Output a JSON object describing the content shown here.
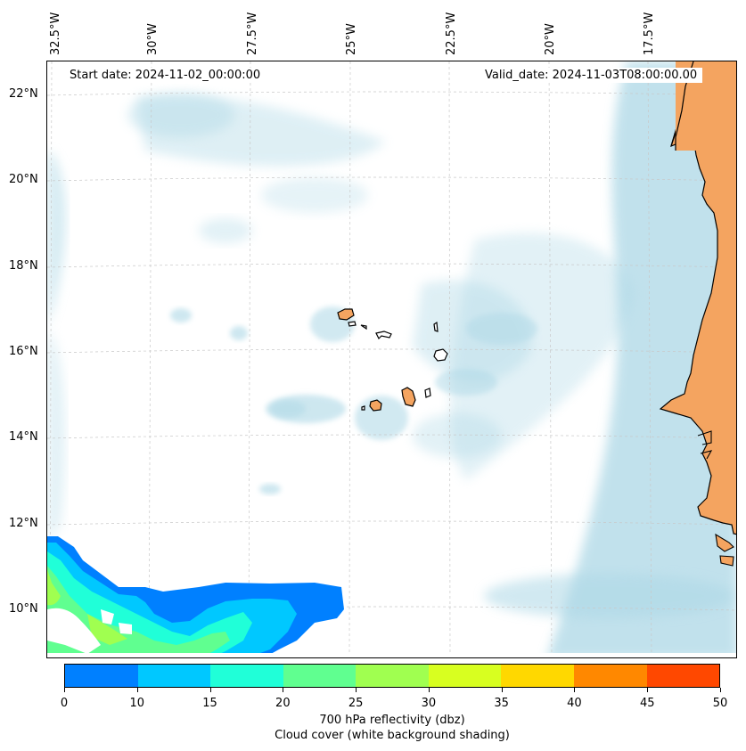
{
  "map": {
    "start_date": "Start date: 2024-11-02_00:00:00",
    "valid_date": "Valid_date: 2024-11-03T08:00:00.00",
    "longitude_labels": [
      "32.5°W",
      "30°W",
      "27.5°W",
      "25°W",
      "22.5°W",
      "20°W",
      "17.5°W"
    ],
    "latitude_labels": [
      "22°N",
      "20°N",
      "18°N",
      "16°N",
      "14°N",
      "12°N",
      "10°N"
    ],
    "land_color": "#f4a460",
    "cloud_color": "#add8e6"
  },
  "colorbar": {
    "ticks": [
      "0",
      "10",
      "15",
      "20",
      "25",
      "30",
      "35",
      "40",
      "45",
      "50"
    ],
    "colors": [
      "#0080ff",
      "#00c8ff",
      "#20ffd8",
      "#60ff90",
      "#a0ff50",
      "#d8ff20",
      "#ffd800",
      "#ff8800",
      "#ff4800"
    ],
    "title_line1": "700 hPa reflectivity (dbz)",
    "title_line2": "Cloud cover (white background shading)"
  }
}
